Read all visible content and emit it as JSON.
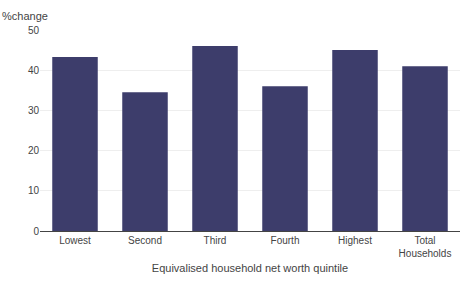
{
  "chart_data": {
    "type": "bar",
    "categories": [
      "Lowest",
      "Second",
      "Third",
      "Fourth",
      "Highest",
      "Total\nHouseholds"
    ],
    "values": [
      43.3,
      34.5,
      46.0,
      36.0,
      45.0,
      41.0
    ],
    "color": "#3d3d6b",
    "xlabel": "Equivalised household net worth quintile",
    "ylabel": "%change",
    "ylim": [
      0,
      50
    ],
    "yticks": [
      0,
      10,
      20,
      30,
      40,
      50
    ],
    "grid": true
  }
}
